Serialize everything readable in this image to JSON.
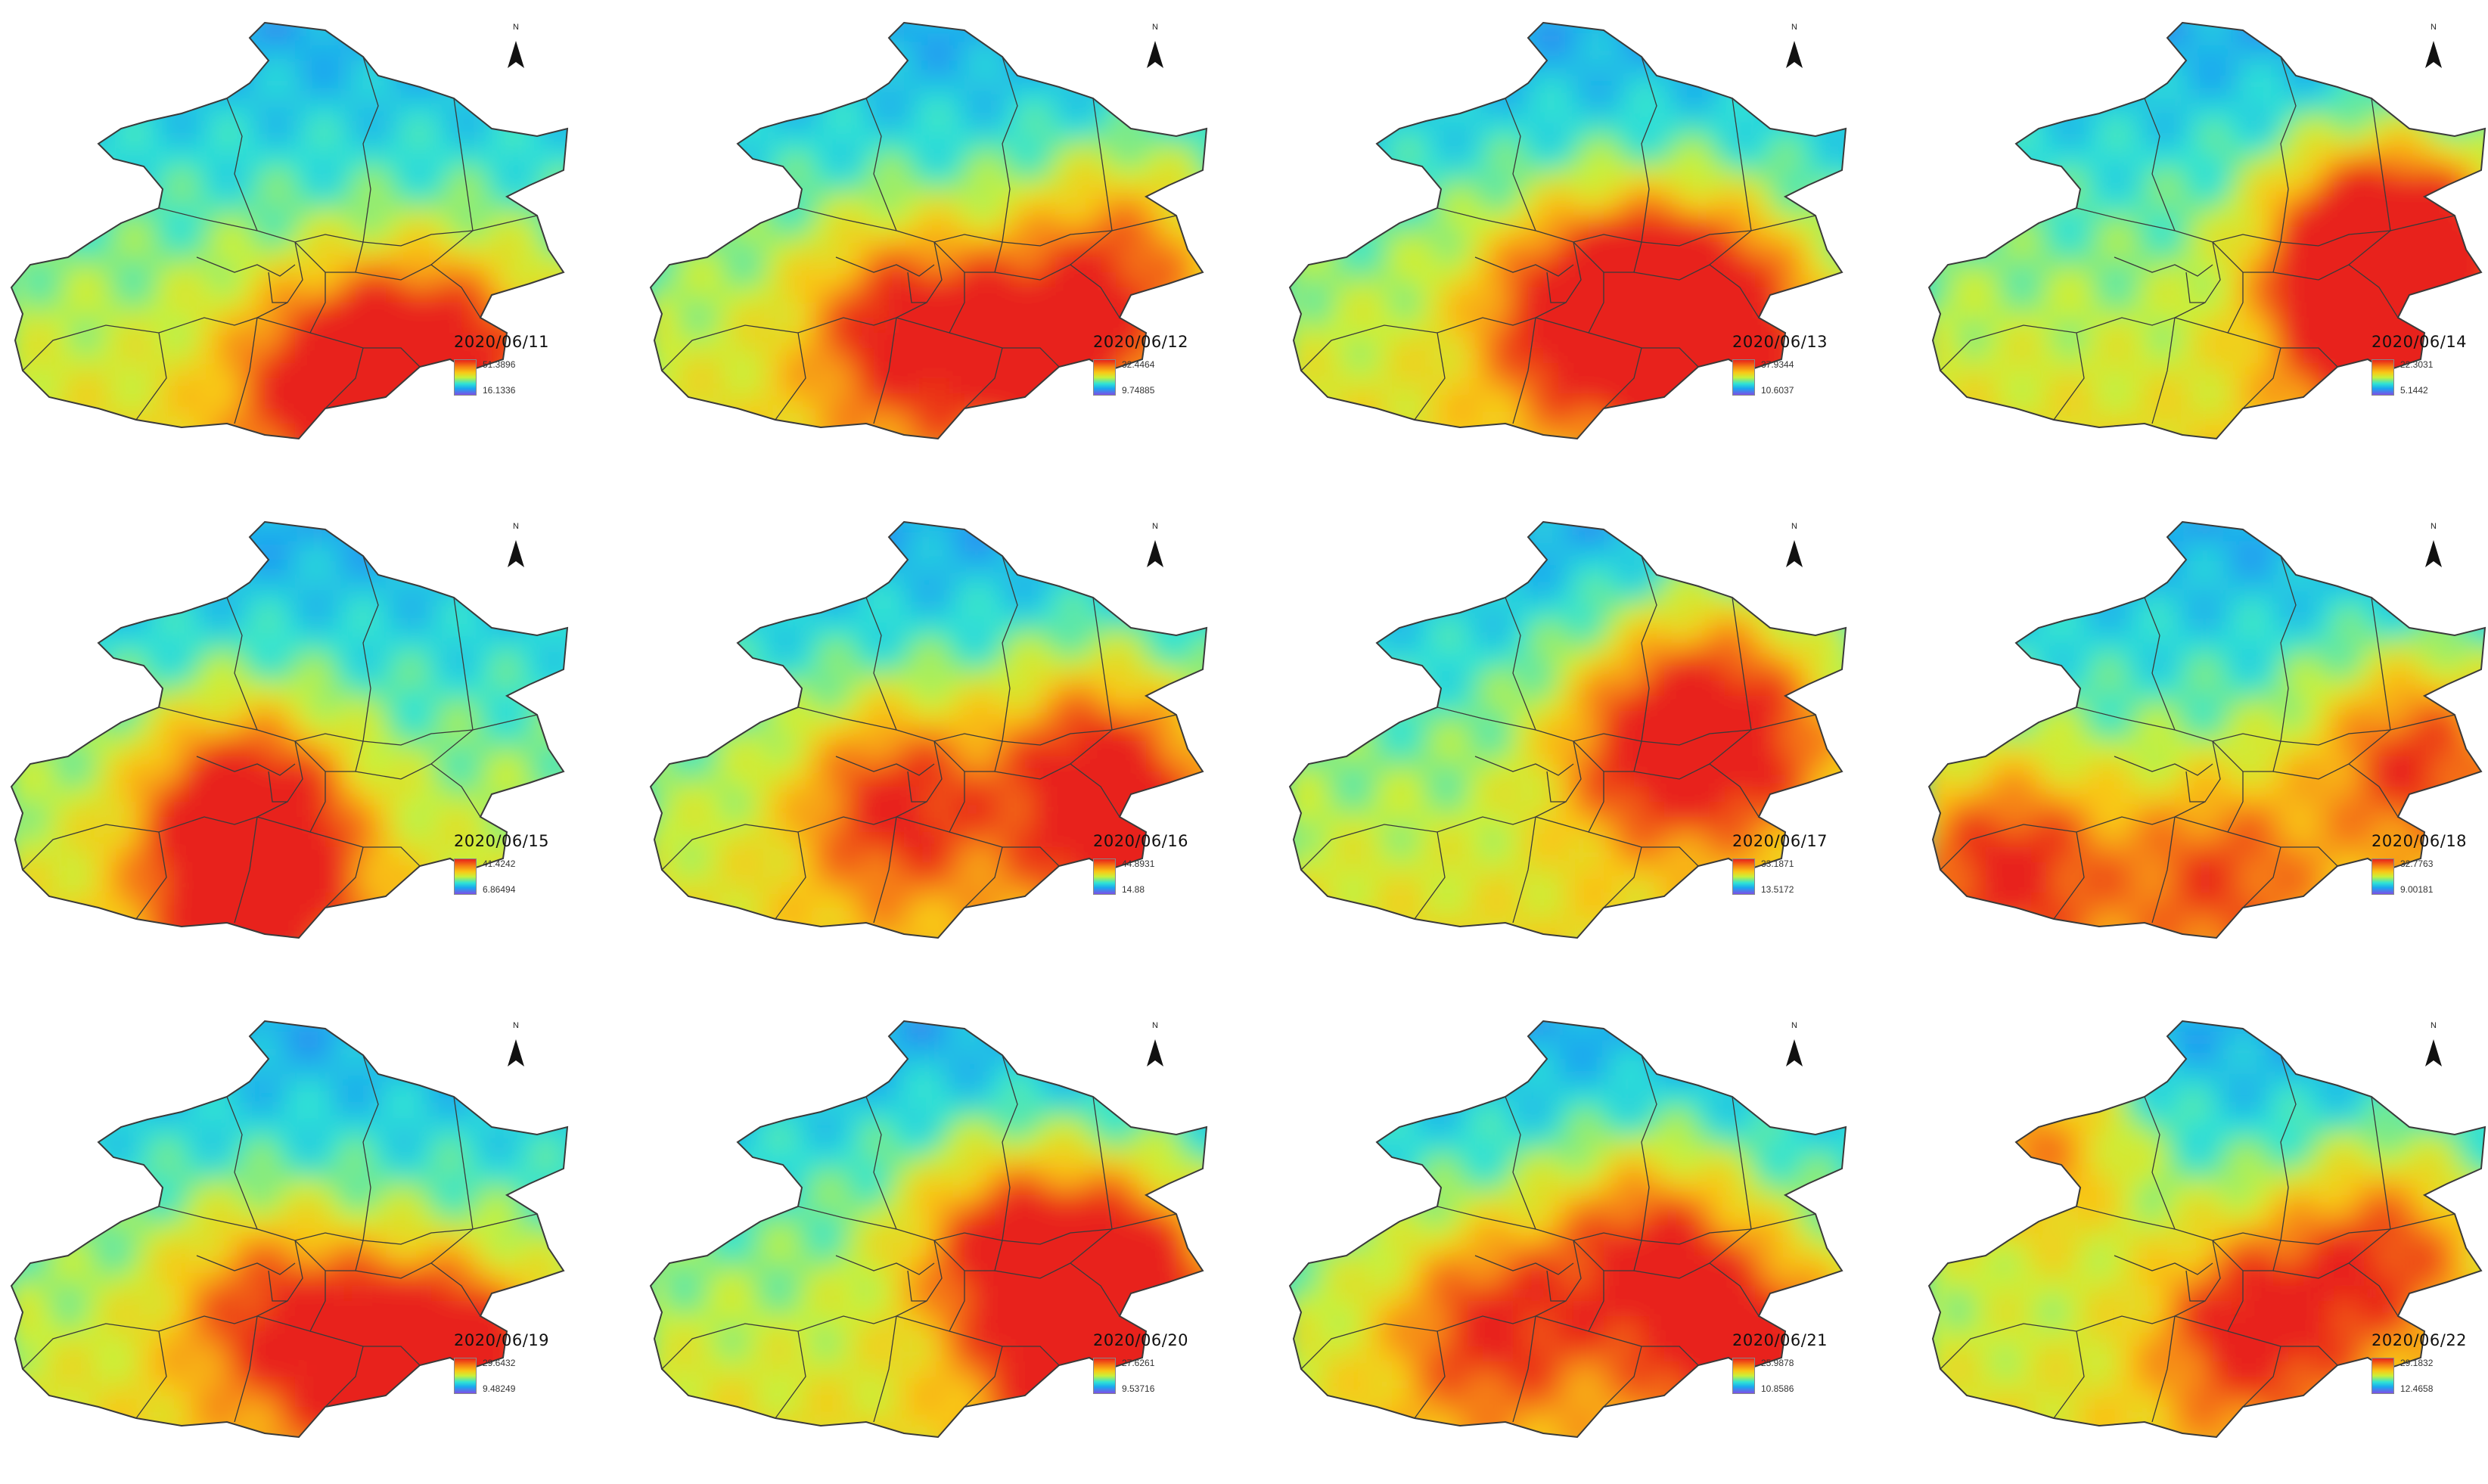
{
  "north_arrow_label": "N",
  "color_ramp": [
    "#7f4fe6",
    "#1aa6f0",
    "#2fe3d5",
    "#c9f13a",
    "#f9c816",
    "#f57a13",
    "#e8231a"
  ],
  "boundary_color": "#3a3a3a",
  "panels": [
    {
      "date": "2020/06/11",
      "legend_max": "51.3896",
      "legend_min": "16.1336"
    },
    {
      "date": "2020/06/12",
      "legend_max": "32.4464",
      "legend_min": "9.74885"
    },
    {
      "date": "2020/06/13",
      "legend_max": "37.9344",
      "legend_min": "10.6037"
    },
    {
      "date": "2020/06/14",
      "legend_max": "22.3031",
      "legend_min": "5.1442"
    },
    {
      "date": "2020/06/15",
      "legend_max": "41.4242",
      "legend_min": "6.86494"
    },
    {
      "date": "2020/06/16",
      "legend_max": "44.8931",
      "legend_min": "14.88"
    },
    {
      "date": "2020/06/17",
      "legend_max": "33.1871",
      "legend_min": "13.5172"
    },
    {
      "date": "2020/06/18",
      "legend_max": "32.7763",
      "legend_min": "9.00181"
    },
    {
      "date": "2020/06/19",
      "legend_max": "29.6432",
      "legend_min": "9.48249"
    },
    {
      "date": "2020/06/20",
      "legend_max": "27.6261",
      "legend_min": "9.53716"
    },
    {
      "date": "2020/06/21",
      "legend_max": "25.9878",
      "legend_min": "10.8586"
    },
    {
      "date": "2020/06/22",
      "legend_max": "29.1832",
      "legend_min": "12.4658"
    }
  ]
}
